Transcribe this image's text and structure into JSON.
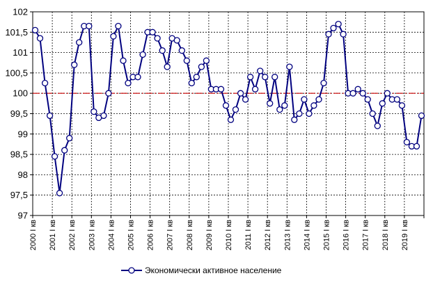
{
  "chart_data": {
    "type": "line",
    "title": "",
    "xlabel": "",
    "ylabel": "",
    "ylim": [
      97,
      102
    ],
    "yticks": [
      "97",
      "97,5",
      "98",
      "98,5",
      "99",
      "99,5",
      "100",
      "100,5",
      "101",
      "101,5",
      "102"
    ],
    "xtick_labels": [
      "2000 I кв",
      "2001 I кв",
      "2002 I кв",
      "2003 I кв",
      "2004 I кв",
      "2005 I кв",
      "2006 I кв",
      "2007 I кв",
      "2008 I кв",
      "2009 I кв",
      "2010 I кв",
      "2011 I кв",
      "2012 I кв",
      "2013 I кв",
      "2014 I кв",
      "2015 I кв",
      "2016 I кв",
      "2017 I кв",
      "2018 I кв",
      "2019 I кв"
    ],
    "grid": true,
    "reference_line": {
      "y": 100,
      "color": "#cc0000",
      "style": "dash-dot"
    },
    "legend_position": "bottom",
    "series": [
      {
        "name": "Экономически активное население",
        "color": "#00007f",
        "marker": "circle",
        "values": [
          101.55,
          101.35,
          100.25,
          99.45,
          98.45,
          97.55,
          98.6,
          98.9,
          100.7,
          101.25,
          101.65,
          101.65,
          99.55,
          99.4,
          99.45,
          100.0,
          101.4,
          101.65,
          100.8,
          100.25,
          100.4,
          100.4,
          100.95,
          101.5,
          101.5,
          101.35,
          101.05,
          100.65,
          101.35,
          101.3,
          101.05,
          100.8,
          100.25,
          100.4,
          100.65,
          100.8,
          100.1,
          100.1,
          100.1,
          99.7,
          99.35,
          99.6,
          100.0,
          99.85,
          100.4,
          100.1,
          100.55,
          100.4,
          99.75,
          100.4,
          99.6,
          99.7,
          100.65,
          99.35,
          99.5,
          99.85,
          99.5,
          99.7,
          99.85,
          100.25,
          101.45,
          101.6,
          101.7,
          101.45,
          100.0,
          100.0,
          100.1,
          100.0,
          99.85,
          99.5,
          99.2,
          99.75,
          100.0,
          99.85,
          99.85,
          99.7,
          98.8,
          98.7,
          98.7,
          99.45
        ]
      }
    ]
  }
}
